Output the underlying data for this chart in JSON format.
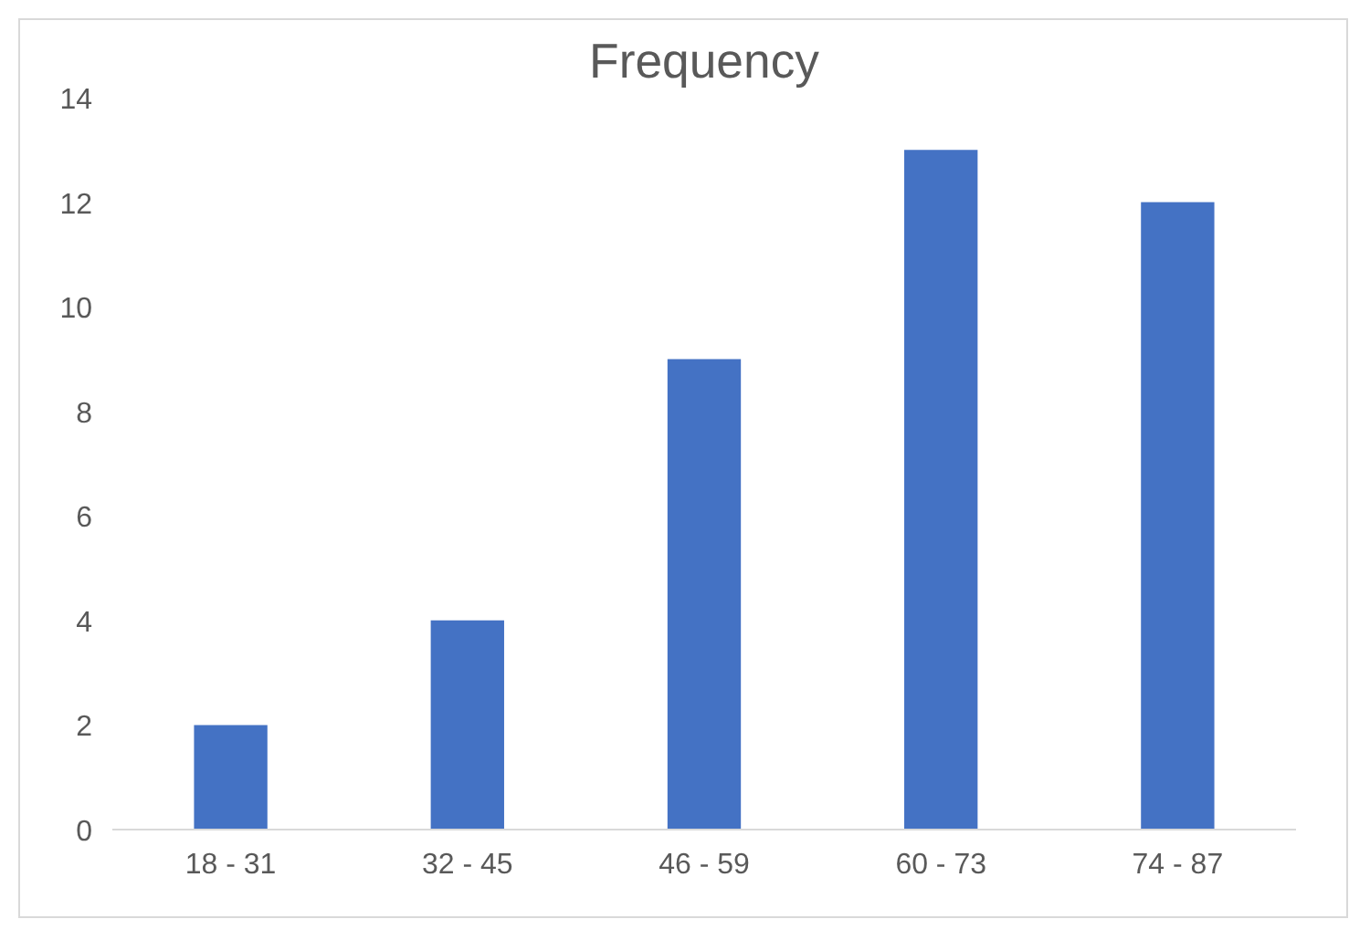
{
  "chart_data": {
    "type": "bar",
    "title": "Frequency",
    "categories": [
      "18 - 31",
      "32 - 45",
      "46 - 59",
      "60 - 73",
      "74 - 87"
    ],
    "values": [
      2,
      4,
      9,
      13,
      12
    ],
    "color": "#4472c4",
    "ylim": [
      0,
      14
    ],
    "yticks": [
      0,
      2,
      4,
      6,
      8,
      10,
      12,
      14
    ]
  }
}
